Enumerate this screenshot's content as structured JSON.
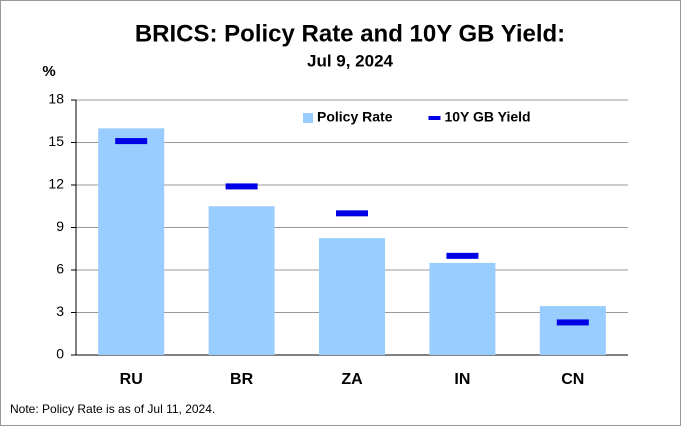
{
  "chart_data": {
    "type": "bar",
    "title": "BRICS: Policy Rate and 10Y GB Yield:",
    "subtitle": "Jul 9, 2024",
    "y_label": "%",
    "note": "Note: Policy Rate is as of Jul 11, 2024.",
    "categories": [
      "RU",
      "BR",
      "ZA",
      "IN",
      "CN"
    ],
    "series": [
      {
        "name": "Policy Rate",
        "color": "#99ccff",
        "style": "bar",
        "values": [
          16,
          10.5,
          8.25,
          6.5,
          3.45
        ]
      },
      {
        "name": "10Y GB Yield",
        "color": "#0000e6",
        "style": "dash",
        "values": [
          15.1,
          11.9,
          10.0,
          7.0,
          2.3
        ]
      }
    ],
    "ylim": [
      0,
      18
    ],
    "yticks": [
      0,
      3,
      6,
      9,
      12,
      15,
      18
    ],
    "grid": true,
    "legend": "top"
  }
}
